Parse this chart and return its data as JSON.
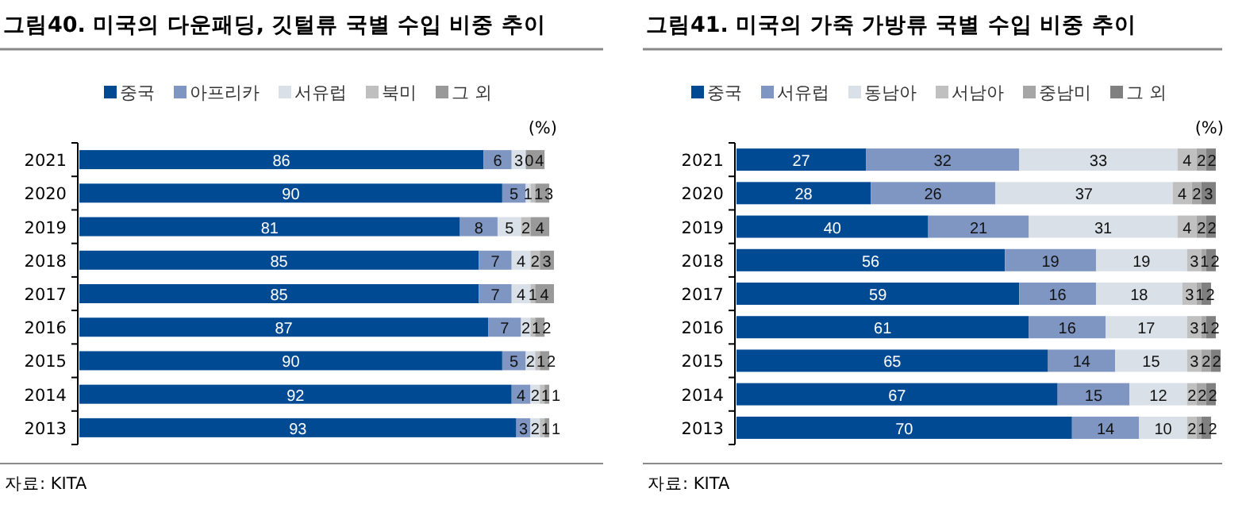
{
  "chart_data": [
    {
      "type": "bar",
      "orientation": "horizontal",
      "stacked": true,
      "title": "그림40. 미국의 다운패딩, 깃털류 국별 수입 비중 추이",
      "categories": [
        "2021",
        "2020",
        "2019",
        "2018",
        "2017",
        "2016",
        "2015",
        "2014",
        "2013"
      ],
      "xlim": [
        0,
        101
      ],
      "tick_labels": "y",
      "legend": "top",
      "data_labels": true,
      "annotations": [
        "(%)",
        "자료: KITA"
      ],
      "series": [
        {
          "name": "중국",
          "color": "#004a93",
          "values": [
            86,
            90,
            81,
            85,
            85,
            87,
            90,
            92,
            93
          ]
        },
        {
          "name": "아프리카",
          "color": "#7f96c2",
          "values": [
            6,
            5,
            8,
            7,
            7,
            7,
            5,
            4,
            3
          ]
        },
        {
          "name": "서유럽",
          "color": "#d9e0e8",
          "values": [
            3,
            1,
            5,
            4,
            4,
            2,
            2,
            2,
            2
          ]
        },
        {
          "name": "북미",
          "color": "#bfbfbf",
          "values": [
            0,
            1,
            2,
            2,
            1,
            1,
            1,
            1,
            1
          ]
        },
        {
          "name": "그 외",
          "color": "#999999",
          "values": [
            4,
            3,
            4,
            3,
            4,
            2,
            2,
            1,
            1
          ]
        }
      ]
    },
    {
      "type": "bar",
      "orientation": "horizontal",
      "stacked": true,
      "title": "그림41. 미국의 가죽 가방류 국별 수입 비중 추이",
      "categories": [
        "2021",
        "2020",
        "2019",
        "2018",
        "2017",
        "2016",
        "2015",
        "2014",
        "2013"
      ],
      "xlim": [
        0,
        101
      ],
      "tick_labels": "y",
      "legend": "top",
      "data_labels": true,
      "annotations": [
        "(%)",
        "자료: KITA"
      ],
      "series": [
        {
          "name": "중국",
          "color": "#004a93",
          "values": [
            27,
            28,
            40,
            56,
            59,
            61,
            65,
            67,
            70
          ]
        },
        {
          "name": "서유럽",
          "color": "#7f96c2",
          "values": [
            32,
            26,
            21,
            19,
            16,
            16,
            14,
            15,
            14
          ]
        },
        {
          "name": "동남아",
          "color": "#d9e0e8",
          "values": [
            33,
            37,
            31,
            19,
            18,
            17,
            15,
            12,
            10
          ]
        },
        {
          "name": "서남아",
          "color": "#c0c0c0",
          "values": [
            4,
            4,
            4,
            3,
            3,
            3,
            3,
            2,
            2
          ]
        },
        {
          "name": "중남미",
          "color": "#a6a6a6",
          "values": [
            2,
            2,
            2,
            1,
            1,
            1,
            2,
            2,
            1
          ]
        },
        {
          "name": "그 외",
          "color": "#808080",
          "values": [
            2,
            3,
            2,
            2,
            2,
            2,
            2,
            2,
            2
          ]
        }
      ]
    }
  ]
}
